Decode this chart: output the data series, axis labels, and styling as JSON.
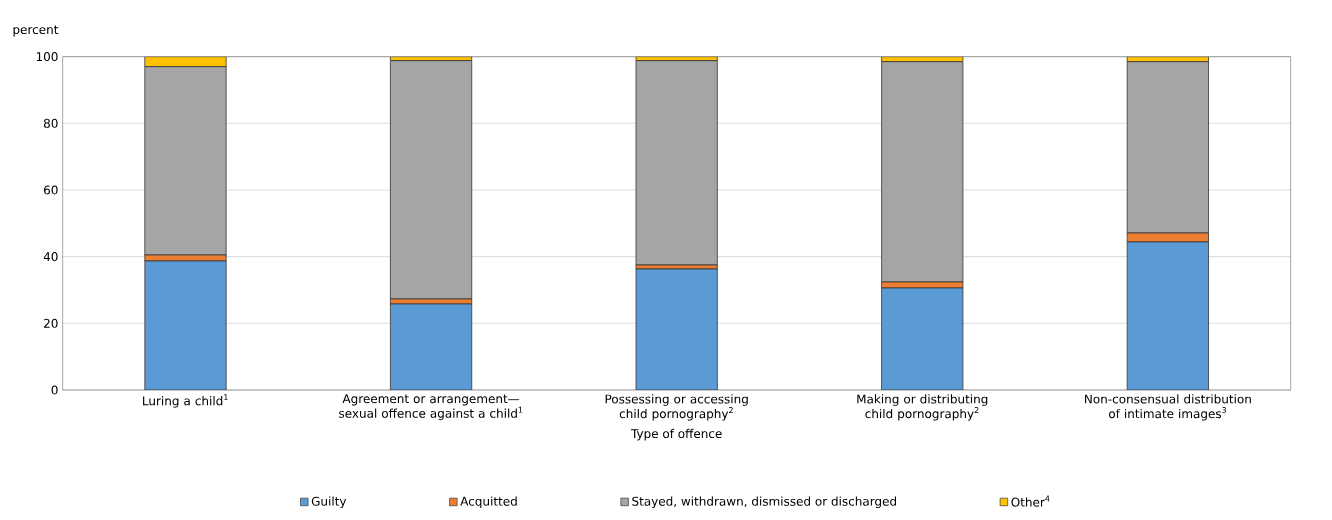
{
  "chart_data": {
    "type": "bar",
    "stacked": true,
    "xlabel": "Type of offence",
    "ylabel": "percent",
    "categories": [
      "Luring a child$^{1}$",
      "Agreement or arrangement—sexual offence against a child$^{1}$",
      "Possessing or accessing child pornography$^{2}$",
      "Making or distributing child pornography$^{2}$",
      "Non-consensual distribution of intimate images$^{3}$"
    ],
    "series": [
      {
        "name": "Guilty",
        "color": "#5b9bd5",
        "values": [
          38.7,
          25.8,
          36.3,
          30.6,
          44.4
        ]
      },
      {
        "name": "Acquitted",
        "color": "#ed7d31",
        "values": [
          1.8,
          1.5,
          1.2,
          1.8,
          2.7
        ]
      },
      {
        "name": "Stayed, withdrawn, dismissed or discharged",
        "color": "#a5a5a5",
        "values": [
          56.5,
          71.5,
          61.3,
          66.1,
          51.4
        ]
      },
      {
        "name": "Other$^{4}$",
        "color": "#ffc000",
        "values": [
          3.0,
          1.2,
          1.2,
          1.5,
          1.5
        ]
      }
    ],
    "ylim": [
      0,
      100
    ],
    "yticks": [
      0,
      20,
      40,
      60,
      80,
      100
    ],
    "grid": "y",
    "legend": "bottom"
  }
}
